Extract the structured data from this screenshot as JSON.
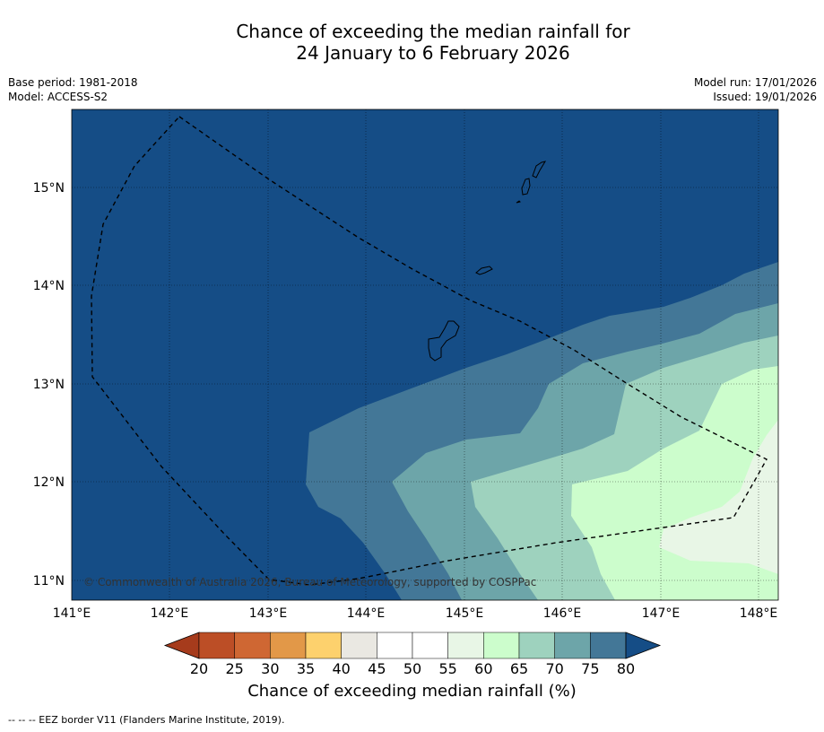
{
  "title": {
    "line1": "Chance of exceeding the median rainfall for",
    "line2": "24 January to 6 February 2026"
  },
  "meta": {
    "base_period": "Base period: 1981-2018",
    "model": "Model: ACCESS-S2",
    "model_run": "Model run: 17/01/2026",
    "issued": "Issued: 19/01/2026"
  },
  "axes": {
    "lon_ticks": [
      "141°E",
      "142°E",
      "143°E",
      "144°E",
      "145°E",
      "146°E",
      "147°E",
      "148°E"
    ],
    "lat_ticks": [
      "15°N",
      "14°N",
      "13°N",
      "12°N",
      "11°N"
    ]
  },
  "copyright": "© Commonwealth of Australia 2026, Bureau of Meteorology, supported by COSPPac",
  "colorbar": {
    "ticks": [
      "20",
      "25",
      "30",
      "35",
      "40",
      "45",
      "50",
      "55",
      "60",
      "65",
      "70",
      "75",
      "80"
    ],
    "colors": [
      "#a63b1c",
      "#bc4e26",
      "#cf6733",
      "#e29848",
      "#fdd16d",
      "#eae8e2",
      "#ffffff",
      "#ffffff",
      "#e8f6e6",
      "#ccfdcc",
      "#9ed2be",
      "#6da5a9",
      "#437797",
      "#154d86"
    ],
    "title": "Chance of exceeding median rainfall (%)"
  },
  "legend_note": "--  --  -- EEZ border V11 (Flanders Marine Institute, 2019)."
}
